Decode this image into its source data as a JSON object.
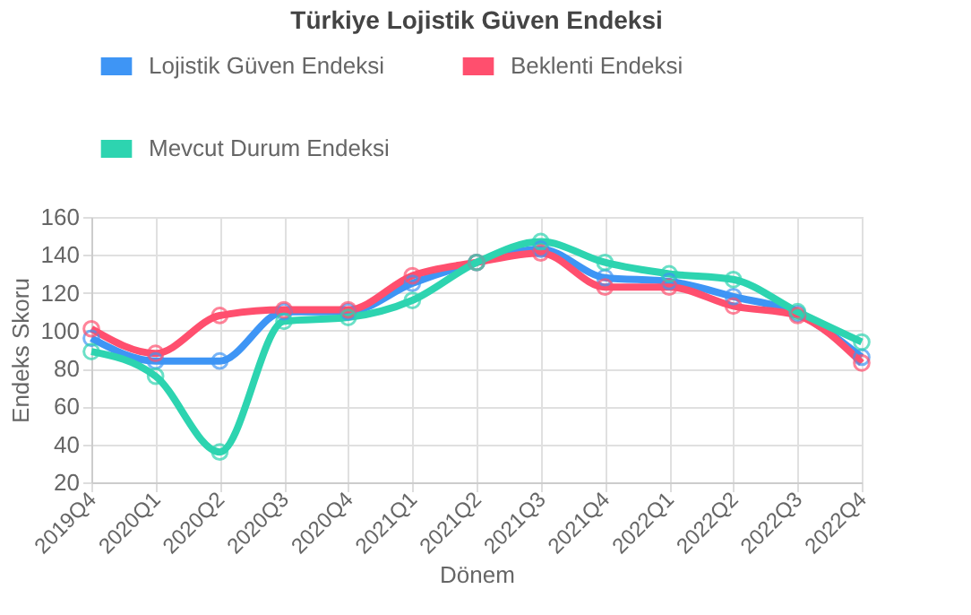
{
  "chart_data": {
    "type": "line",
    "title": "Türkiye Lojistik Güven Endeksi",
    "xlabel": "Dönem",
    "ylabel": "Endeks Skoru",
    "categories": [
      "2019Q4",
      "2020Q1",
      "2020Q2",
      "2020Q3",
      "2020Q4",
      "2021Q1",
      "2021Q2",
      "2021Q3",
      "2021Q4",
      "2022Q1",
      "2022Q2",
      "2022Q3",
      "2022Q4"
    ],
    "series": [
      {
        "name": "Lojistik Güven Endeksi",
        "color": "#3e95f5",
        "values": [
          96,
          84,
          84,
          110,
          110,
          125,
          136,
          143,
          128,
          126,
          118,
          109,
          86
        ]
      },
      {
        "name": "Beklenti Endeksi",
        "color": "#ff4f6e",
        "values": [
          101,
          88,
          108,
          111,
          111,
          129,
          136,
          141,
          123,
          123,
          113,
          108,
          83
        ]
      },
      {
        "name": "Mevcut Durum Endeksi",
        "color": "#2dd4b0",
        "values": [
          89,
          76,
          36,
          105,
          107,
          116,
          136,
          147,
          136,
          130,
          127,
          110,
          94
        ]
      }
    ],
    "ylim": [
      20,
      160
    ],
    "yticks": [
      20,
      40,
      60,
      80,
      100,
      120,
      140,
      160
    ],
    "grid": true,
    "legend": "top",
    "marker": "circle",
    "line_style": "solid"
  }
}
